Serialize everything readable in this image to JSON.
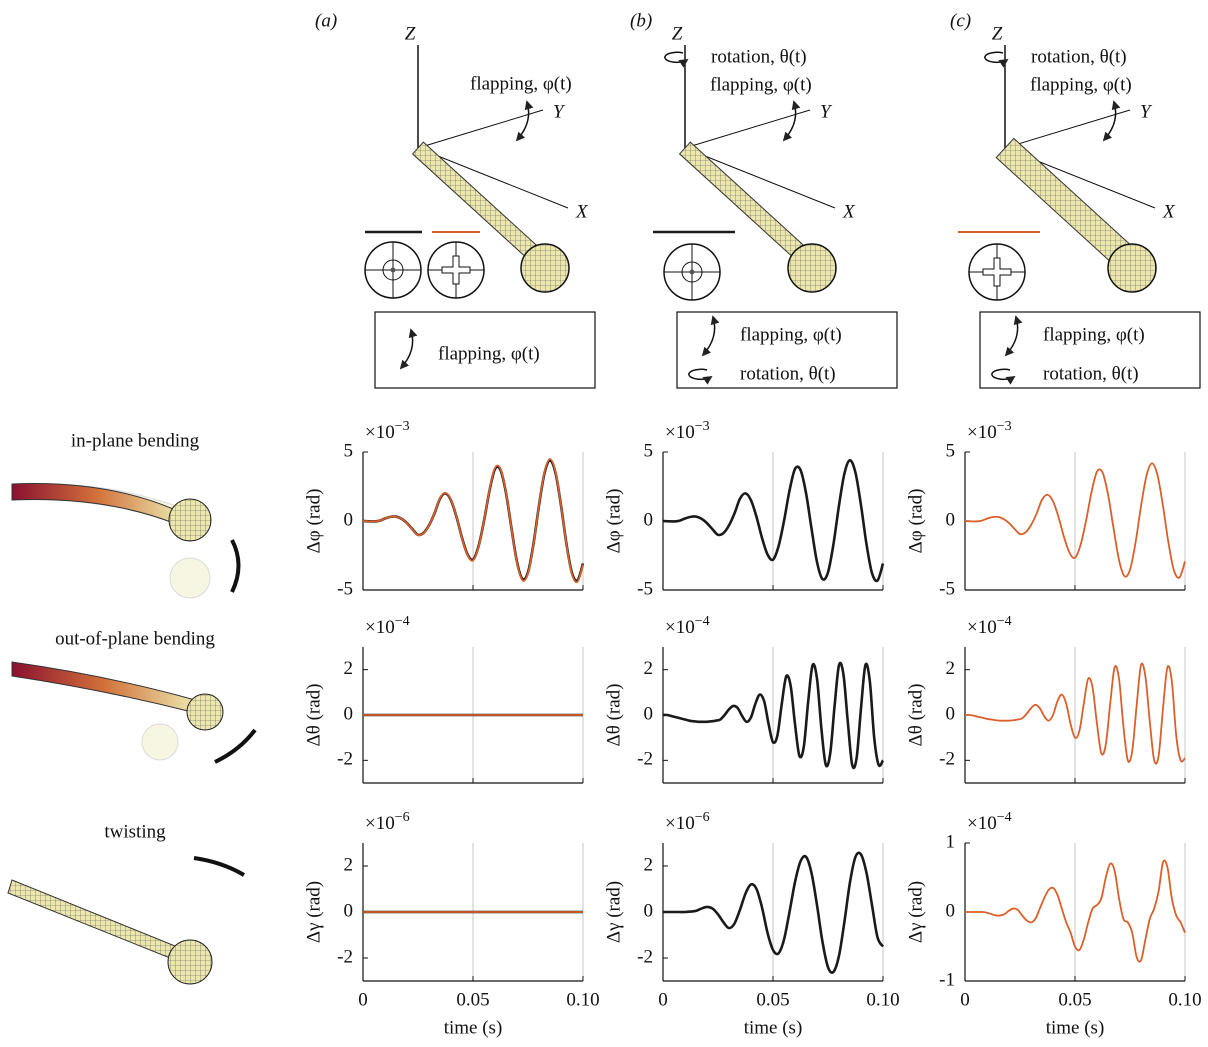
{
  "panels": [
    {
      "label": "(a)",
      "axes": [
        "Z",
        "Y",
        "X"
      ],
      "annotations": [
        "flapping, φ(t)"
      ],
      "box": [
        "flapping, φ(t)"
      ]
    },
    {
      "label": "(b)",
      "axes": [
        "Z",
        "Y",
        "X"
      ],
      "annotations": [
        "rotation, θ(t)",
        "flapping, φ(t)"
      ],
      "box": [
        "flapping, φ(t)",
        "rotation, θ(t)"
      ]
    },
    {
      "label": "(c)",
      "axes": [
        "Z",
        "Y",
        "X"
      ],
      "annotations": [
        "rotation, θ(t)",
        "flapping, φ(t)"
      ],
      "box": [
        "flapping, φ(t)",
        "rotation, θ(t)"
      ]
    }
  ],
  "modes": [
    "in-plane bending",
    "out-of-plane bending",
    "twisting"
  ],
  "chart_data": [
    {
      "type": "line",
      "ylabel": "Δφ (rad)",
      "multiplier": "×10",
      "multiplier_exponent": "−3",
      "xlim": [
        0,
        0.1
      ],
      "xticks": [
        0,
        0.05,
        0.1
      ],
      "xtick_labels": false,
      "ylim": [
        -5,
        5
      ],
      "yticks": [
        -5,
        0,
        5
      ],
      "grid": "x",
      "x": [
        0,
        0.0025,
        0.005,
        0.0075,
        0.01,
        0.0125,
        0.015,
        0.0175,
        0.02,
        0.0225,
        0.025,
        0.0275,
        0.03,
        0.0325,
        0.035,
        0.0375,
        0.04,
        0.0425,
        0.045,
        0.0475,
        0.05,
        0.0525,
        0.055,
        0.0575,
        0.06,
        0.0625,
        0.065,
        0.0675,
        0.07,
        0.0725,
        0.075,
        0.0775,
        0.08,
        0.0825,
        0.085,
        0.0875,
        0.09,
        0.0925,
        0.095,
        0.0975,
        0.1
      ],
      "series": [
        {
          "color": "#1a1a1a",
          "values": [
            0,
            -0.02,
            -0.03,
            0.02,
            0.18,
            0.3,
            0.32,
            0.16,
            -0.16,
            -0.6,
            -1.0,
            -0.87,
            -0.32,
            0.55,
            1.62,
            2.0,
            1.5,
            0.3,
            -1.22,
            -2.42,
            -2.8,
            -1.84,
            0,
            2.2,
            3.77,
            3.7,
            2.04,
            -0.54,
            -2.97,
            -4.21,
            -3.72,
            -1.66,
            1.13,
            3.46,
            4.4,
            3.49,
            1.14,
            -1.68,
            -3.78,
            -4.31,
            -3.08
          ]
        },
        {
          "color": "#d9602b",
          "values": [
            0,
            -0.02,
            -0.03,
            0.02,
            0.18,
            0.3,
            0.32,
            0.16,
            -0.17,
            -0.62,
            -1.02,
            -0.89,
            -0.33,
            0.56,
            1.65,
            2.04,
            1.53,
            0.31,
            -1.25,
            -2.47,
            -2.86,
            -1.88,
            0,
            2.24,
            3.85,
            3.78,
            2.08,
            -0.55,
            -3.03,
            -4.3,
            -3.8,
            -1.7,
            1.15,
            3.53,
            4.49,
            3.56,
            1.16,
            -1.71,
            -3.86,
            -4.4,
            -3.15
          ]
        }
      ]
    },
    {
      "type": "line",
      "ylabel": "Δφ (rad)",
      "multiplier": "×10",
      "multiplier_exponent": "−3",
      "xlim": [
        0,
        0.1
      ],
      "xticks": [
        0,
        0.05,
        0.1
      ],
      "xtick_labels": false,
      "ylim": [
        -5,
        5
      ],
      "yticks": [
        -5,
        0,
        5
      ],
      "grid": "x",
      "x": [
        0,
        0.0025,
        0.005,
        0.0075,
        0.01,
        0.0125,
        0.015,
        0.0175,
        0.02,
        0.0225,
        0.025,
        0.0275,
        0.03,
        0.0325,
        0.035,
        0.0375,
        0.04,
        0.0425,
        0.045,
        0.0475,
        0.05,
        0.0525,
        0.055,
        0.0575,
        0.06,
        0.0625,
        0.065,
        0.0675,
        0.07,
        0.0725,
        0.075,
        0.0775,
        0.08,
        0.0825,
        0.085,
        0.0875,
        0.09,
        0.0925,
        0.095,
        0.0975,
        0.1
      ],
      "series": [
        {
          "color": "#1a1a1a",
          "values": [
            0,
            -0.02,
            -0.03,
            0.02,
            0.18,
            0.3,
            0.32,
            0.16,
            -0.16,
            -0.6,
            -1.0,
            -0.87,
            -0.32,
            0.55,
            1.62,
            2.0,
            1.5,
            0.3,
            -1.22,
            -2.42,
            -2.8,
            -1.84,
            0,
            2.2,
            3.77,
            3.7,
            2.04,
            -0.54,
            -2.97,
            -4.21,
            -3.72,
            -1.66,
            1.13,
            3.46,
            4.4,
            3.49,
            1.14,
            -1.68,
            -3.78,
            -4.31,
            -3.08
          ]
        }
      ]
    },
    {
      "type": "line",
      "ylabel": "Δφ (rad)",
      "multiplier": "×10",
      "multiplier_exponent": "−3",
      "xlim": [
        0,
        0.1
      ],
      "xticks": [
        0,
        0.05,
        0.1
      ],
      "xtick_labels": false,
      "ylim": [
        -5,
        5
      ],
      "yticks": [
        -5,
        0,
        5
      ],
      "grid": "x",
      "x": [
        0,
        0.0025,
        0.005,
        0.0075,
        0.01,
        0.0125,
        0.015,
        0.0175,
        0.02,
        0.0225,
        0.025,
        0.0275,
        0.03,
        0.0325,
        0.035,
        0.0375,
        0.04,
        0.0425,
        0.045,
        0.0475,
        0.05,
        0.0525,
        0.055,
        0.0575,
        0.06,
        0.0625,
        0.065,
        0.0675,
        0.07,
        0.0725,
        0.075,
        0.0775,
        0.08,
        0.0825,
        0.085,
        0.0875,
        0.09,
        0.0925,
        0.095,
        0.0975,
        0.1
      ],
      "series": [
        {
          "color": "#d9602b",
          "values": [
            0,
            -0.02,
            -0.03,
            0.02,
            0.17,
            0.28,
            0.3,
            0.15,
            -0.15,
            -0.57,
            -0.95,
            -0.83,
            -0.3,
            0.52,
            1.54,
            1.9,
            1.43,
            0.29,
            -1.16,
            -2.3,
            -2.66,
            -1.75,
            0,
            2.09,
            3.58,
            3.52,
            1.94,
            -0.51,
            -2.82,
            -4.0,
            -3.53,
            -1.58,
            1.07,
            3.29,
            4.18,
            3.32,
            1.08,
            -1.6,
            -3.59,
            -4.09,
            -2.93
          ]
        }
      ]
    },
    {
      "type": "line",
      "ylabel": "Δθ (rad)",
      "multiplier": "×10",
      "multiplier_exponent": "−4",
      "xlim": [
        0,
        0.1
      ],
      "xticks": [
        0,
        0.05,
        0.1
      ],
      "xtick_labels": false,
      "ylim": [
        -3,
        3
      ],
      "yticks": [
        -2,
        0,
        2
      ],
      "grid": "x",
      "x": [
        0,
        0.1
      ],
      "series": [
        {
          "color": "#1a1a1a",
          "values": [
            0,
            0
          ]
        },
        {
          "color": "#d9602b",
          "values": [
            0,
            0
          ]
        }
      ]
    },
    {
      "type": "line",
      "ylabel": "Δθ (rad)",
      "multiplier": "×10",
      "multiplier_exponent": "−4",
      "xlim": [
        0,
        0.1
      ],
      "xticks": [
        0,
        0.05,
        0.1
      ],
      "xtick_labels": false,
      "ylim": [
        -3,
        3
      ],
      "yticks": [
        -2,
        0,
        2
      ],
      "grid": "x",
      "x": [
        0,
        0.002,
        0.004,
        0.006,
        0.008,
        0.01,
        0.012,
        0.014,
        0.016,
        0.018,
        0.02,
        0.022,
        0.024,
        0.026,
        0.028,
        0.03,
        0.032,
        0.034,
        0.036,
        0.038,
        0.04,
        0.042,
        0.044,
        0.046,
        0.048,
        0.05,
        0.052,
        0.054,
        0.056,
        0.058,
        0.06,
        0.062,
        0.064,
        0.066,
        0.068,
        0.07,
        0.072,
        0.074,
        0.076,
        0.078,
        0.08,
        0.082,
        0.084,
        0.086,
        0.088,
        0.09,
        0.092,
        0.094,
        0.096,
        0.098,
        0.1
      ],
      "series": [
        {
          "color": "#1a1a1a",
          "values": [
            0,
            0,
            -0.05,
            -0.1,
            -0.15,
            -0.2,
            -0.25,
            -0.28,
            -0.3,
            -0.3,
            -0.3,
            -0.28,
            -0.25,
            -0.2,
            0,
            0.25,
            0.4,
            0.3,
            -0.05,
            -0.3,
            -0.1,
            0.5,
            0.9,
            0.6,
            -0.4,
            -1.2,
            -0.9,
            0.5,
            1.7,
            1.3,
            -0.4,
            -1.8,
            -1.4,
            0.6,
            2.2,
            1.6,
            -0.6,
            -2.2,
            -1.7,
            0.4,
            2.2,
            1.8,
            -0.3,
            -2.2,
            -1.9,
            0.3,
            2.2,
            1.5,
            -1.0,
            -2.2,
            -2.0
          ]
        }
      ]
    },
    {
      "type": "line",
      "ylabel": "Δθ (rad)",
      "multiplier": "×10",
      "multiplier_exponent": "−4",
      "xlim": [
        0,
        0.1
      ],
      "xticks": [
        0,
        0.05,
        0.1
      ],
      "xtick_labels": false,
      "ylim": [
        -3,
        3
      ],
      "yticks": [
        -2,
        0,
        2
      ],
      "grid": "x",
      "x": [
        0,
        0.002,
        0.004,
        0.006,
        0.008,
        0.01,
        0.012,
        0.014,
        0.016,
        0.018,
        0.02,
        0.022,
        0.024,
        0.026,
        0.028,
        0.03,
        0.032,
        0.034,
        0.036,
        0.038,
        0.04,
        0.042,
        0.044,
        0.046,
        0.048,
        0.05,
        0.052,
        0.054,
        0.056,
        0.058,
        0.06,
        0.062,
        0.064,
        0.066,
        0.068,
        0.07,
        0.072,
        0.074,
        0.076,
        0.078,
        0.08,
        0.082,
        0.084,
        0.086,
        0.088,
        0.09,
        0.092,
        0.094,
        0.096,
        0.098,
        0.1
      ],
      "series": [
        {
          "color": "#d9602b",
          "values": [
            0,
            0,
            -0.03,
            -0.08,
            -0.12,
            -0.17,
            -0.2,
            -0.23,
            -0.25,
            -0.25,
            -0.25,
            -0.23,
            -0.2,
            -0.15,
            0.05,
            0.3,
            0.45,
            0.3,
            -0.05,
            -0.25,
            0,
            0.6,
            0.9,
            0.5,
            -0.4,
            -1.0,
            -0.7,
            0.5,
            1.6,
            1.2,
            -0.4,
            -1.7,
            -1.3,
            0.5,
            2.1,
            1.6,
            -0.5,
            -2.0,
            -1.6,
            0.4,
            2.2,
            1.7,
            -0.3,
            -2.0,
            -1.8,
            0.3,
            2.1,
            1.5,
            -0.9,
            -2.0,
            -1.9
          ]
        }
      ]
    },
    {
      "type": "line",
      "ylabel": "Δγ (rad)",
      "xlabel": "time (s)",
      "multiplier": "×10",
      "multiplier_exponent": "−6",
      "xlim": [
        0,
        0.1
      ],
      "xticks": [
        0,
        0.05,
        {
          "value": 0.1,
          "label": "0.10"
        }
      ],
      "ylim": [
        -3,
        3
      ],
      "yticks": [
        -2,
        0,
        2
      ],
      "grid": "x",
      "x": [
        0,
        0.1
      ],
      "series": [
        {
          "color": "#1a1a1a",
          "values": [
            0,
            0
          ]
        },
        {
          "color": "#d9602b",
          "values": [
            0,
            0
          ]
        }
      ]
    },
    {
      "type": "line",
      "ylabel": "Δγ (rad)",
      "xlabel": "time (s)",
      "multiplier": "×10",
      "multiplier_exponent": "−6",
      "xlim": [
        0,
        0.1
      ],
      "xticks": [
        0,
        0.05,
        {
          "value": 0.1,
          "label": "0.10"
        }
      ],
      "ylim": [
        -3,
        3
      ],
      "yticks": [
        -2,
        0,
        2
      ],
      "grid": "x",
      "x": [
        0,
        0.0025,
        0.005,
        0.0075,
        0.01,
        0.0125,
        0.015,
        0.0175,
        0.02,
        0.0225,
        0.025,
        0.0275,
        0.03,
        0.0325,
        0.035,
        0.0375,
        0.04,
        0.0425,
        0.045,
        0.0475,
        0.05,
        0.0525,
        0.055,
        0.0575,
        0.06,
        0.0625,
        0.065,
        0.0675,
        0.07,
        0.0725,
        0.075,
        0.0775,
        0.08,
        0.0825,
        0.085,
        0.0875,
        0.09,
        0.0925,
        0.095,
        0.0975,
        0.1
      ],
      "series": [
        {
          "color": "#1a1a1a",
          "values": [
            0,
            0,
            0,
            0,
            0,
            0.02,
            0.05,
            0.15,
            0.22,
            0.15,
            -0.1,
            -0.45,
            -0.7,
            -0.5,
            0.1,
            0.8,
            1.2,
            1.0,
            0.2,
            -0.9,
            -1.65,
            -1.8,
            -1.2,
            0,
            1.3,
            2.2,
            2.4,
            1.7,
            0.3,
            -1.3,
            -2.4,
            -2.6,
            -1.9,
            -0.4,
            1.3,
            2.4,
            2.5,
            1.7,
            0.3,
            -1.1,
            -1.5
          ]
        }
      ]
    },
    {
      "type": "line",
      "ylabel": "Δγ (rad)",
      "xlabel": "time (s)",
      "multiplier": "×10",
      "multiplier_exponent": "−4",
      "xlim": [
        0,
        0.1
      ],
      "xticks": [
        0,
        0.05,
        {
          "value": 0.1,
          "label": "0.10"
        }
      ],
      "ylim": [
        -1,
        1
      ],
      "yticks": [
        -1,
        0,
        1
      ],
      "grid": "x",
      "x": [
        0,
        0.002,
        0.004,
        0.006,
        0.008,
        0.01,
        0.012,
        0.014,
        0.016,
        0.018,
        0.02,
        0.022,
        0.024,
        0.026,
        0.028,
        0.03,
        0.032,
        0.034,
        0.036,
        0.038,
        0.04,
        0.042,
        0.044,
        0.046,
        0.048,
        0.05,
        0.052,
        0.054,
        0.056,
        0.058,
        0.06,
        0.062,
        0.064,
        0.066,
        0.068,
        0.07,
        0.072,
        0.074,
        0.076,
        0.078,
        0.08,
        0.082,
        0.084,
        0.086,
        0.088,
        0.09,
        0.092,
        0.094,
        0.096,
        0.098,
        0.1
      ],
      "series": [
        {
          "color": "#d9602b",
          "values": [
            0,
            0,
            0,
            0,
            0,
            -0.01,
            -0.03,
            -0.05,
            -0.05,
            -0.03,
            0.02,
            0.05,
            0.03,
            -0.05,
            -0.12,
            -0.15,
            -0.1,
            0.05,
            0.2,
            0.32,
            0.35,
            0.25,
            0.05,
            -0.15,
            -0.3,
            -0.5,
            -0.55,
            -0.4,
            -0.15,
            0.05,
            0.1,
            0.2,
            0.5,
            0.7,
            0.6,
            0.2,
            -0.1,
            -0.15,
            -0.3,
            -0.65,
            -0.7,
            -0.4,
            -0.1,
            0.05,
            0.3,
            0.72,
            0.65,
            0.2,
            -0.05,
            -0.15,
            -0.3
          ]
        }
      ]
    }
  ]
}
